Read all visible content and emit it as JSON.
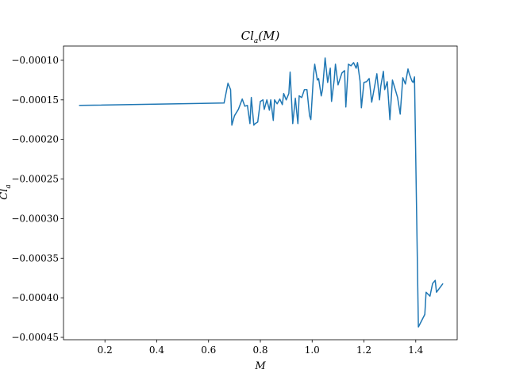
{
  "chart_data": {
    "type": "line",
    "title": "Cl_a(M)",
    "title_parts": {
      "base": "Cl",
      "sub": "a",
      "arg": "(M)"
    },
    "xlabel": "M",
    "ylabel": "Cl_a",
    "ylabel_parts": {
      "base": "Cl",
      "sub": "a"
    },
    "xlim": [
      0.04,
      1.56
    ],
    "ylim": [
      -0.000453,
      -8.2e-05
    ],
    "xticks": [
      0.2,
      0.4,
      0.6,
      0.8,
      1.0,
      1.2,
      1.4
    ],
    "xtick_labels": [
      "0.2",
      "0.4",
      "0.6",
      "0.8",
      "1.0",
      "1.2",
      "1.4"
    ],
    "yticks": [
      -0.00045,
      -0.0004,
      -0.00035,
      -0.0003,
      -0.00025,
      -0.0002,
      -0.00015,
      -0.0001
    ],
    "ytick_labels": [
      "−0.00045",
      "−0.00040",
      "−0.00035",
      "−0.00030",
      "−0.00025",
      "−0.00020",
      "−0.00015",
      "−0.00010"
    ],
    "grid": false,
    "line_color": "#1f77b4",
    "series": [
      {
        "x": [
          0.1,
          0.66,
          0.675,
          0.685,
          0.69,
          0.7,
          0.715,
          0.73,
          0.74,
          0.75,
          0.76,
          0.765,
          0.775,
          0.78,
          0.79,
          0.8,
          0.81,
          0.815,
          0.825,
          0.835,
          0.84,
          0.85,
          0.855,
          0.865,
          0.875,
          0.885,
          0.89,
          0.9,
          0.91,
          0.915,
          0.925,
          0.935,
          0.945,
          0.95,
          0.96,
          0.97,
          0.98,
          0.99,
          0.995,
          1.005,
          1.01,
          1.02,
          1.025,
          1.035,
          1.04,
          1.05,
          1.06,
          1.07,
          1.075,
          1.085,
          1.09,
          1.1,
          1.105,
          1.115,
          1.125,
          1.13,
          1.14,
          1.15,
          1.16,
          1.17,
          1.175,
          1.185,
          1.19,
          1.2,
          1.21,
          1.22,
          1.23,
          1.24,
          1.25,
          1.26,
          1.265,
          1.275,
          1.28,
          1.29,
          1.3,
          1.31,
          1.32,
          1.33,
          1.34,
          1.35,
          1.36,
          1.37,
          1.375,
          1.385,
          1.39,
          1.395,
          1.41,
          1.435,
          1.44,
          1.455,
          1.465,
          1.475,
          1.48,
          1.505
        ],
        "y": [
          -0.000157,
          -0.000154,
          -0.000129,
          -0.000137,
          -0.000182,
          -0.00017,
          -0.000162,
          -0.000149,
          -0.000158,
          -0.000157,
          -0.00018,
          -0.000147,
          -0.000182,
          -0.00018,
          -0.000178,
          -0.000152,
          -0.00015,
          -0.000162,
          -0.00015,
          -0.000163,
          -0.00015,
          -0.000176,
          -0.00015,
          -0.000155,
          -0.000149,
          -0.000156,
          -0.000142,
          -0.00015,
          -0.000142,
          -0.000115,
          -0.00018,
          -0.000148,
          -0.00018,
          -0.000145,
          -0.000147,
          -0.000137,
          -0.000137,
          -0.00017,
          -0.000175,
          -0.00012,
          -0.000105,
          -0.000125,
          -0.000123,
          -0.000145,
          -0.000137,
          -9.7e-05,
          -0.000128,
          -0.00011,
          -0.000152,
          -0.000125,
          -0.000105,
          -0.000131,
          -0.000126,
          -0.000116,
          -0.000113,
          -0.000159,
          -0.000105,
          -0.000107,
          -0.000103,
          -0.00011,
          -0.000103,
          -0.000126,
          -0.00016,
          -0.000128,
          -0.000127,
          -0.000123,
          -0.000153,
          -0.000135,
          -0.000117,
          -0.00015,
          -0.000133,
          -0.000114,
          -0.000137,
          -0.000127,
          -0.000175,
          -0.000125,
          -0.000136,
          -0.000147,
          -0.000168,
          -0.000122,
          -0.00013,
          -0.000111,
          -0.000117,
          -0.000126,
          -0.000128,
          -0.000121,
          -0.000437,
          -0.000421,
          -0.000393,
          -0.000398,
          -0.000382,
          -0.000378,
          -0.000393,
          -0.000382
        ]
      }
    ]
  }
}
